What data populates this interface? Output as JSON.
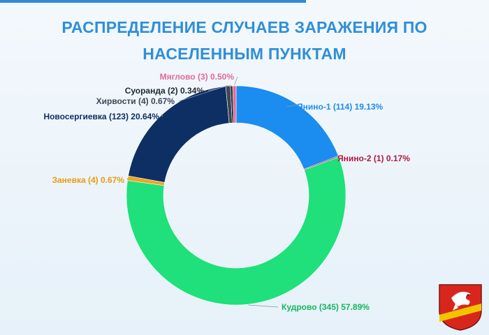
{
  "title": {
    "line1": "РАСПРЕДЕЛЕНИЕ СЛУЧАЕВ ЗАРАЖЕНИЯ ПО",
    "line2": "НАСЕЛЕННЫМ ПУНКТАМ"
  },
  "chart_data": {
    "type": "pie",
    "title": "РАСПРЕДЕЛЕНИЕ СЛУЧАЕВ ЗАРАЖЕНИЯ ПО НАСЕЛЕННЫМ ПУНКТАМ",
    "donut": true,
    "slices": [
      {
        "name": "Янино-1",
        "count": 114,
        "percent": 19.13,
        "color": "#1b8cf0",
        "label": "Янино-1 (114) 19.13%",
        "labelColor": "#1b8cf0"
      },
      {
        "name": "Янино-2",
        "count": 1,
        "percent": 0.17,
        "color": "#a8173d",
        "label": "Янино-2 (1) 0.17%",
        "labelColor": "#b3173f"
      },
      {
        "name": "Кудрово",
        "count": 345,
        "percent": 57.89,
        "color": "#1fe07a",
        "label": "Кудрово (345) 57.89%",
        "labelColor": "#17b85c"
      },
      {
        "name": "Заневка",
        "count": 4,
        "percent": 0.67,
        "color": "#f0a51b",
        "label": "Заневка (4) 0.67%",
        "labelColor": "#e89a10"
      },
      {
        "name": "Новосергиевка",
        "count": 123,
        "percent": 20.64,
        "color": "#0d2f63",
        "label": "Новосергиевка (123) 20.64%",
        "labelColor": "#0d2f63"
      },
      {
        "name": "Хирвости",
        "count": 4,
        "percent": 0.67,
        "color": "#3c4656",
        "label": "Хирвости (4) 0.67%",
        "labelColor": "#3c4656"
      },
      {
        "name": "Суоранда",
        "count": 2,
        "percent": 0.34,
        "color": "#232c3a",
        "label": "Суоранда (2) 0.34%",
        "labelColor": "#1f2733"
      },
      {
        "name": "Мяглово",
        "count": 3,
        "percent": 0.5,
        "color": "#e06b9a",
        "label": "Мяглово (3) 0.50%",
        "labelColor": "#e06b9a"
      }
    ]
  },
  "emblem": {
    "icon": "coat-of-arms-icon",
    "colors": [
      "#d9261c",
      "#f2c400",
      "#ffffff"
    ]
  }
}
